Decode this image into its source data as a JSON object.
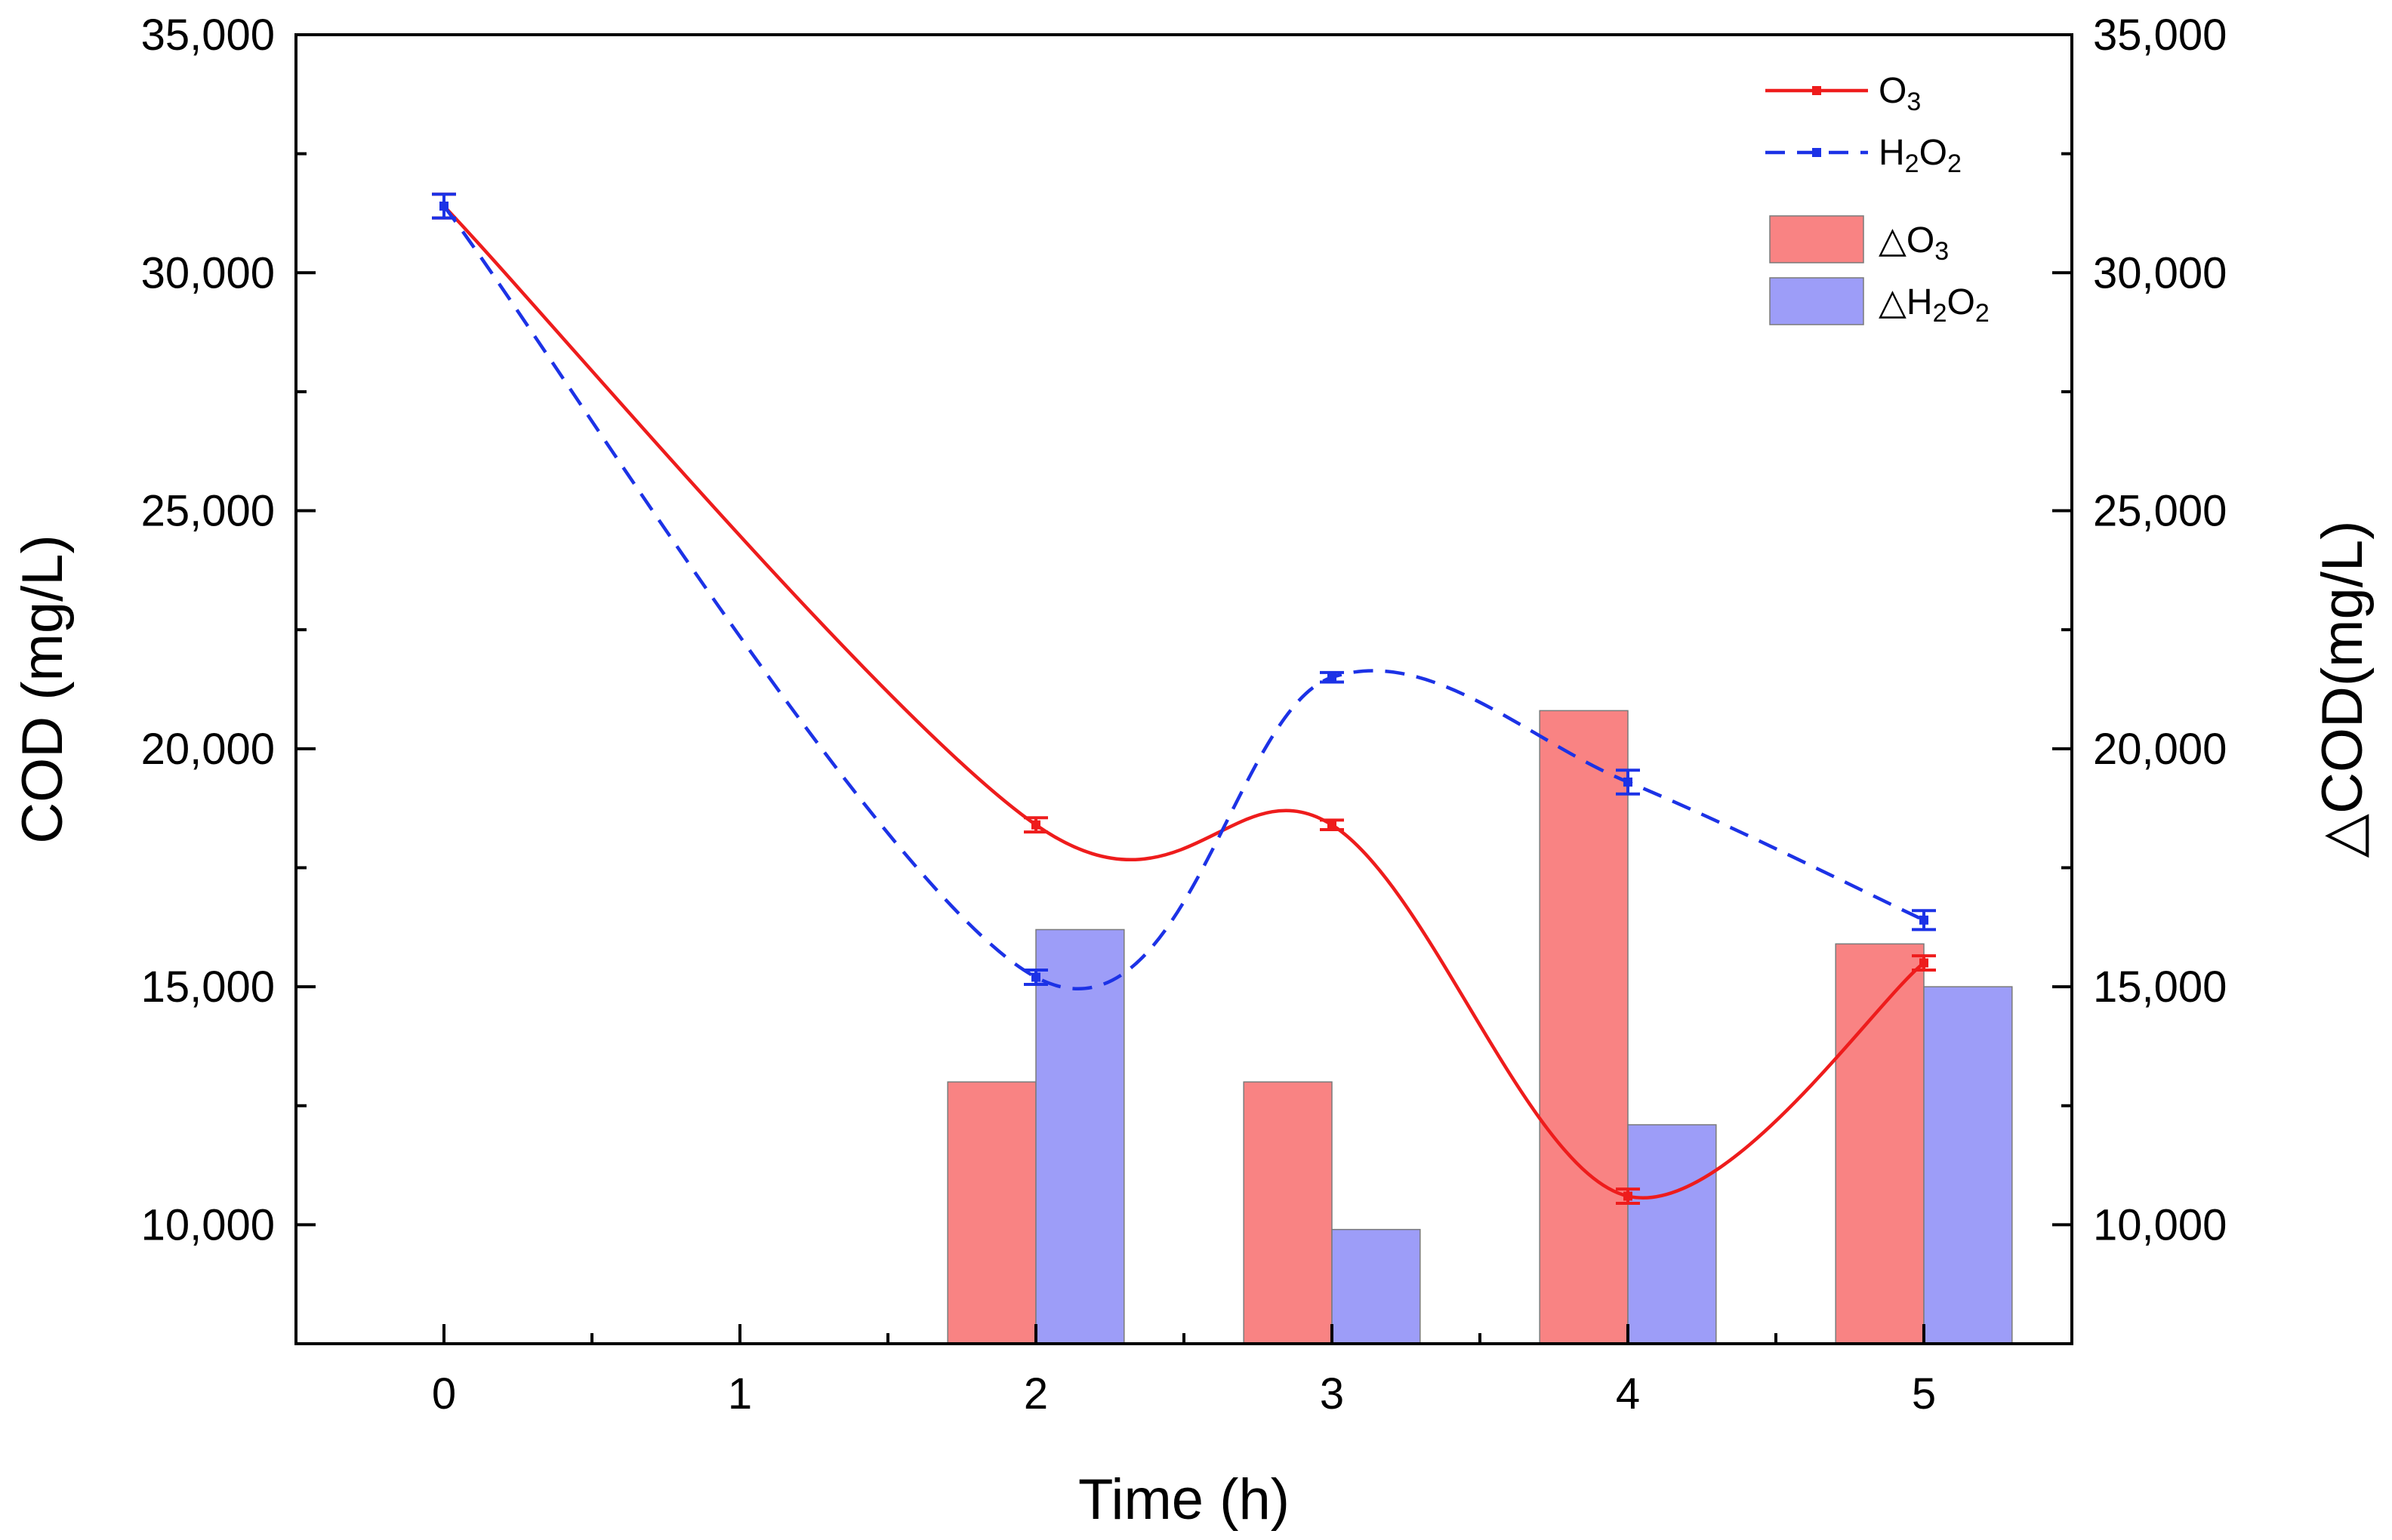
{
  "chart_data": {
    "type": "bar+line",
    "x": [
      0,
      1,
      2,
      3,
      4,
      5
    ],
    "x_ticks": [
      "0",
      "1",
      "2",
      "3",
      "4",
      "5"
    ],
    "xlim": [
      -0.5,
      5.5
    ],
    "xlabel": "Time (h)",
    "ylabel_left": "COD (mg/L)",
    "ylabel_right": "△COD(mg/L)",
    "ylim": [
      7500,
      35000
    ],
    "y_ticks": [
      10000,
      15000,
      20000,
      25000,
      30000,
      35000
    ],
    "y_tick_labels": [
      "10,000",
      "15,000",
      "20,000",
      "25,000",
      "30,000",
      "35,000"
    ],
    "line_series": [
      {
        "name": "O3",
        "label_base": "O",
        "label_sub": "3",
        "color": "#ee1c1c",
        "style": "solid",
        "x": [
          0,
          2,
          3,
          4,
          5
        ],
        "values": [
          31400,
          18400,
          18400,
          10600,
          15500
        ],
        "errors": [
          250,
          150,
          100,
          150,
          150
        ]
      },
      {
        "name": "H2O2",
        "label_parts": [
          "H",
          "2",
          "O",
          "2"
        ],
        "color": "#1c32e6",
        "style": "dashed",
        "x": [
          0,
          2,
          3,
          4,
          5
        ],
        "values": [
          31400,
          15200,
          21500,
          19300,
          16400
        ],
        "errors": [
          250,
          150,
          100,
          250,
          200
        ]
      }
    ],
    "bar_series": [
      {
        "name": "△O3",
        "label_parts": [
          "△O",
          "3"
        ],
        "color": "#f98383",
        "x": [
          2,
          3,
          4,
          5
        ],
        "values": [
          13000,
          13000,
          20800,
          15900
        ]
      },
      {
        "name": "△H2O2",
        "label_parts": [
          "△H",
          "2",
          "O",
          "2"
        ],
        "color": "#9d9df8",
        "x": [
          2,
          3,
          4,
          5
        ],
        "values": [
          16200,
          9900,
          12100,
          15000
        ]
      }
    ]
  }
}
